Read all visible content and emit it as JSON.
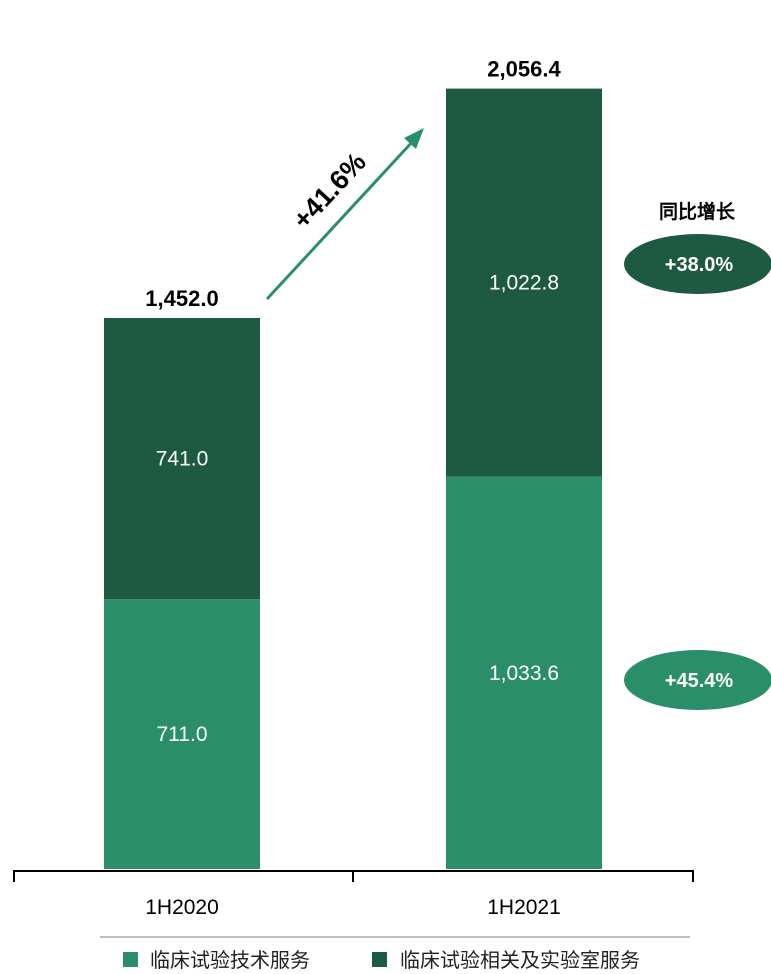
{
  "chart_data": {
    "type": "bar",
    "stacked": true,
    "categories": [
      "1H2020",
      "1H2021"
    ],
    "series": [
      {
        "name": "临床试验技术服务",
        "values": [
          711.0,
          1033.6
        ],
        "labels": [
          "711.0",
          "1,033.6"
        ],
        "color": "#2a8f68"
      },
      {
        "name": "临床试验相关及实验室服务",
        "values": [
          741.0,
          1022.8
        ],
        "labels": [
          "741.0",
          "1,022.8"
        ],
        "color": "#1e5a41"
      }
    ],
    "totals": [
      1452.0,
      2056.4
    ],
    "total_labels": [
      "1,452.0",
      "2,056.4"
    ],
    "overall_growth": "+41.6%",
    "yoy_title": "同比增长",
    "yoy_growth": [
      {
        "series": "临床试验相关及实验室服务",
        "label": "+38.0%",
        "color": "#1e5a41"
      },
      {
        "series": "临床试验技术服务",
        "label": "+45.4%",
        "color": "#2a8f68"
      }
    ],
    "legend_position": "bottom",
    "grid": false,
    "ylim": [
      0,
      2200
    ]
  }
}
